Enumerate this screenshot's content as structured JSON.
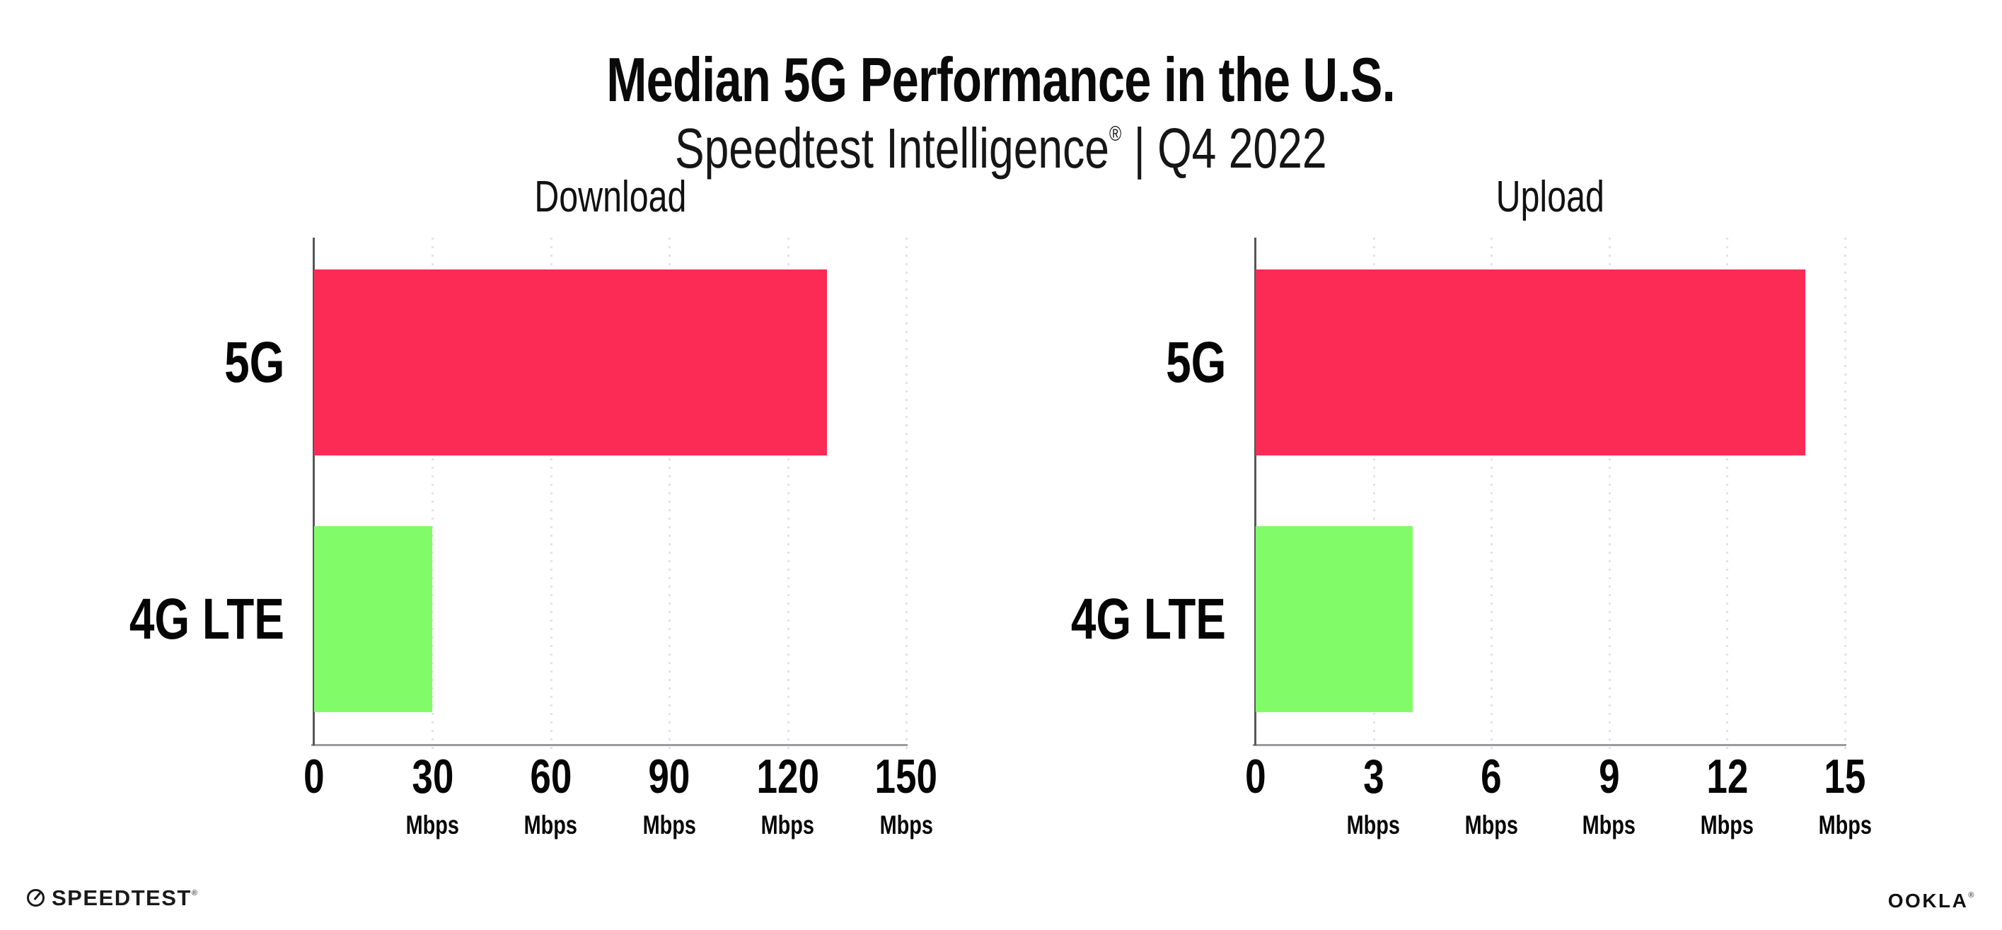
{
  "header": {
    "title": "Median 5G Performance in the U.S.",
    "subtitle_brand": "Speedtest Intelligence",
    "subtitle_reg": "®",
    "subtitle_period": " | Q4 2022"
  },
  "footer": {
    "speedtest_wordmark": "SPEEDTEST",
    "speedtest_reg": "®",
    "ookla_wordmark": "OOKLA",
    "ookla_reg": "®"
  },
  "colors": {
    "bar_5g": "#fc2b55",
    "bar_4g_lte": "#81fc68",
    "y_axis_line": "#57575b",
    "x_axis_line": "#9b9b9f",
    "gridline": "#e3e3ed",
    "text": "#0a0a0a",
    "background": "#ffffff"
  },
  "chart_data": [
    {
      "type": "bar",
      "orientation": "horizontal",
      "title": "Download",
      "categories": [
        "5G",
        "4G LTE"
      ],
      "values": [
        130,
        30
      ],
      "unit": "Mbps",
      "xlim": [
        0,
        150
      ],
      "xticks": [
        0,
        30,
        60,
        90,
        120,
        150
      ],
      "bar_colors": [
        "#fc2b55",
        "#81fc68"
      ],
      "grid": "dotted vertical gridlines at each tick, unit label under every nonzero tick"
    },
    {
      "type": "bar",
      "orientation": "horizontal",
      "title": "Upload",
      "categories": [
        "5G",
        "4G LTE"
      ],
      "values": [
        14,
        4
      ],
      "unit": "Mbps",
      "xlim": [
        0,
        15
      ],
      "xticks": [
        0,
        3,
        6,
        9,
        12,
        15
      ],
      "bar_colors": [
        "#fc2b55",
        "#81fc68"
      ],
      "grid": "dotted vertical gridlines at each tick, unit label under every nonzero tick"
    }
  ]
}
